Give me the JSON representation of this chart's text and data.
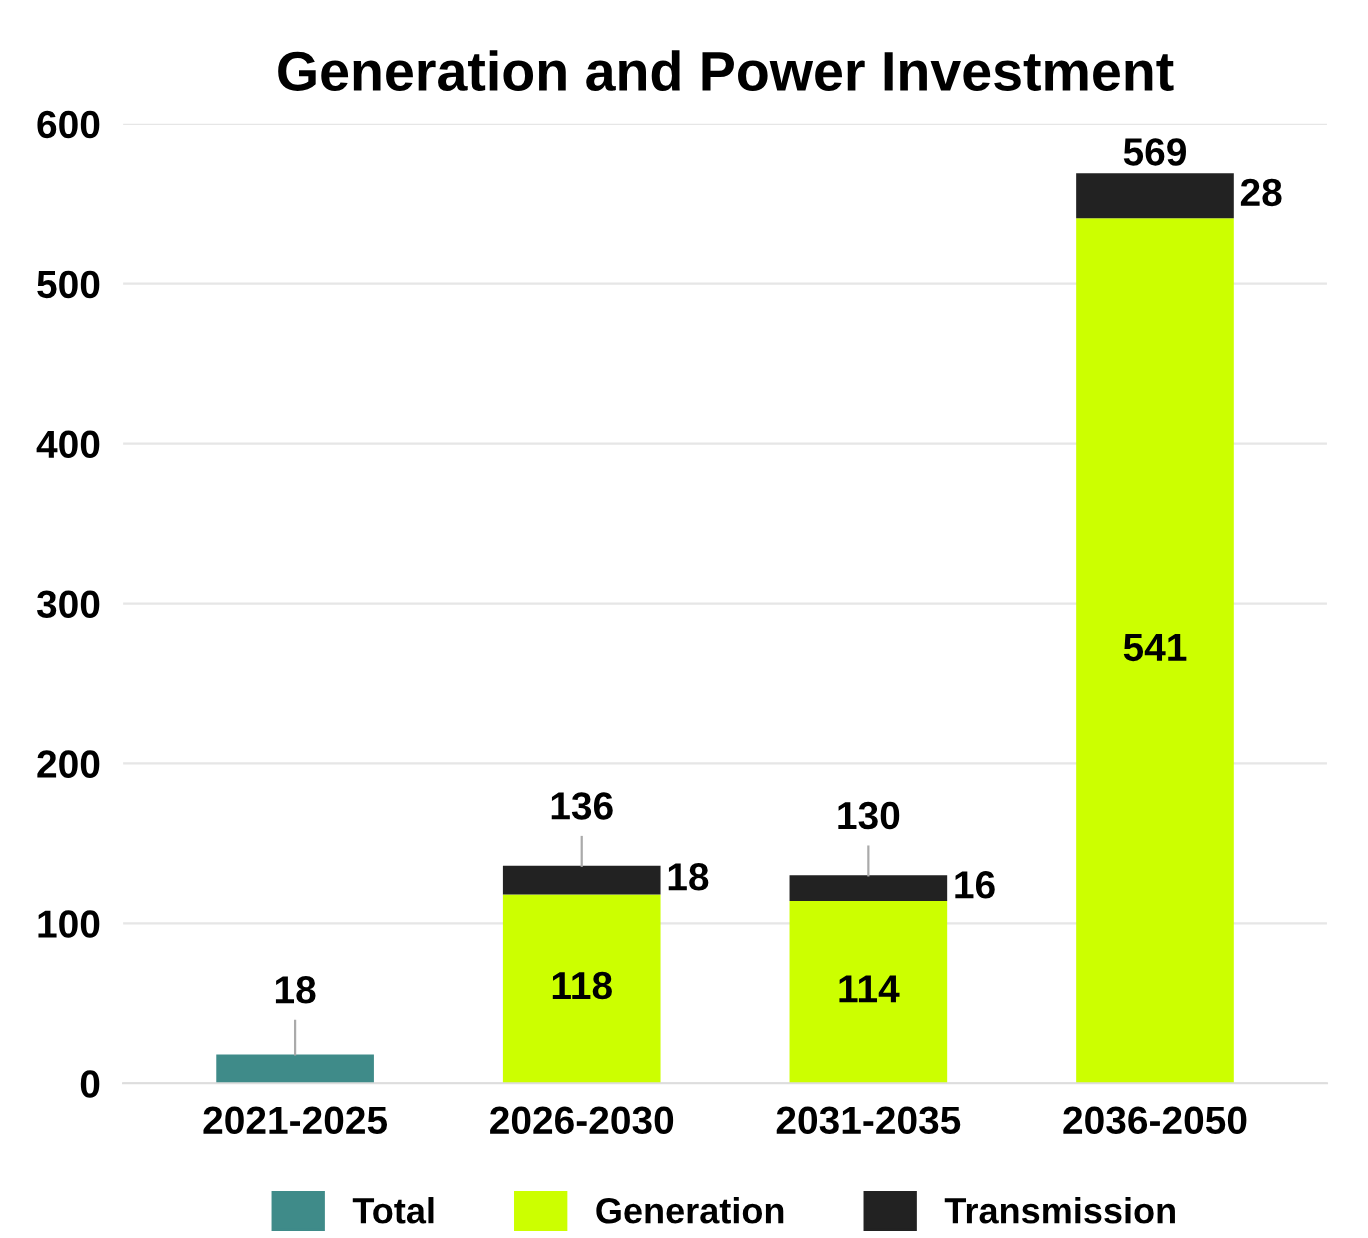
{
  "chart_data": {
    "type": "bar",
    "title": "Generation and Power Investment",
    "categories": [
      "2021-2025",
      "2026-2030",
      "2031-2035",
      "2036-2050"
    ],
    "series": [
      {
        "name": "Total",
        "color": "#3f8b89",
        "values": [
          18,
          null,
          null,
          null
        ]
      },
      {
        "name": "Generation",
        "color": "#ccff00",
        "values": [
          null,
          118,
          114,
          541
        ]
      },
      {
        "name": "Transmission",
        "color": "#222222",
        "values": [
          null,
          18,
          16,
          28
        ]
      }
    ],
    "stacked": true,
    "data_labels": true,
    "totals": [
      null,
      "136",
      "130",
      "569"
    ],
    "ylim": [
      0,
      600
    ],
    "yticks": [
      0,
      100,
      200,
      300,
      400,
      500,
      600
    ],
    "grid": "y",
    "legend": "bottom"
  }
}
